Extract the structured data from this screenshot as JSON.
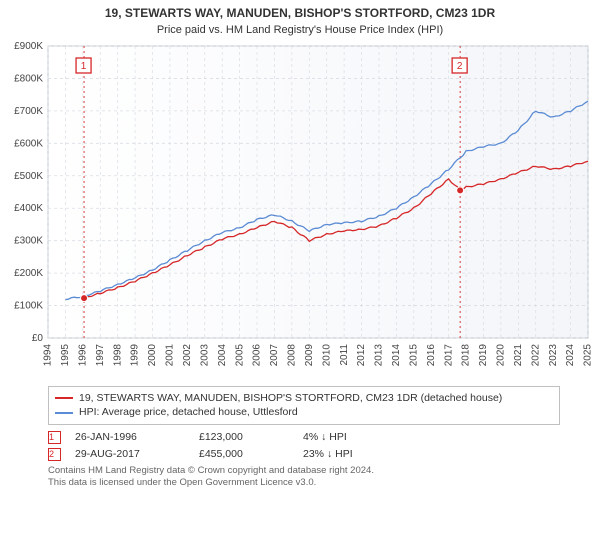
{
  "title_line1": "19, STEWARTS WAY, MANUDEN, BISHOP'S STORTFORD, CM23 1DR",
  "title_line2": "Price paid vs. HM Land Registry's House Price Index (HPI)",
  "chart": {
    "type": "line",
    "background_color": "#ffffff",
    "plot_bg_gradient": [
      "#ffffff",
      "#f3f5f9"
    ],
    "grid_color": "#d9dde3",
    "grid_dash": "3,3",
    "x": {
      "min": 1994,
      "max": 2025,
      "ticks": [
        1994,
        1995,
        1996,
        1997,
        1998,
        1999,
        2000,
        2001,
        2002,
        2003,
        2004,
        2005,
        2006,
        2007,
        2008,
        2009,
        2010,
        2011,
        2012,
        2013,
        2014,
        2015,
        2016,
        2017,
        2018,
        2019,
        2020,
        2021,
        2022,
        2023,
        2024,
        2025
      ],
      "tick_labels": [
        "1994",
        "1995",
        "1996",
        "1997",
        "1998",
        "1999",
        "2000",
        "2001",
        "2002",
        "2003",
        "2004",
        "2005",
        "2006",
        "2007",
        "2008",
        "2009",
        "2010",
        "2011",
        "2012",
        "2013",
        "2014",
        "2015",
        "2016",
        "2017",
        "2018",
        "2019",
        "2020",
        "2021",
        "2022",
        "2023",
        "2024",
        "2025"
      ],
      "label_rotation": -90,
      "label_fontsize": 10
    },
    "y": {
      "min": 0,
      "max": 900,
      "ticks": [
        0,
        100,
        200,
        300,
        400,
        500,
        600,
        700,
        800,
        900
      ],
      "tick_labels": [
        "£0",
        "£100K",
        "£200K",
        "£300K",
        "£400K",
        "£500K",
        "£600K",
        "£700K",
        "£800K",
        "£900K"
      ],
      "label_fontsize": 10
    },
    "series": [
      {
        "name": "property",
        "legend": "19, STEWARTS WAY, MANUDEN, BISHOP'S STORTFORD, CM23 1DR (detached house)",
        "color": "#d62728",
        "line_width": 1.3,
        "x": [
          1996.0,
          1997,
          1998,
          1999,
          2000,
          2001,
          2002,
          2003,
          2004,
          2005,
          2006,
          2007,
          2008,
          2009,
          2010,
          2011,
          2012,
          2013,
          2014,
          2015,
          2016,
          2017,
          2017.66,
          2018,
          2019,
          2020,
          2021,
          2022,
          2023,
          2024,
          2025
        ],
        "y": [
          123,
          138,
          155,
          175,
          200,
          225,
          255,
          280,
          305,
          320,
          340,
          360,
          340,
          300,
          320,
          330,
          335,
          345,
          370,
          400,
          445,
          490,
          455,
          465,
          475,
          490,
          510,
          530,
          520,
          530,
          545
        ]
      },
      {
        "name": "hpi",
        "legend": "HPI: Average price, detached house, Uttlesford",
        "color": "#5b8bd4",
        "line_width": 1.3,
        "x": [
          1995,
          1996,
          1997,
          1998,
          1999,
          2000,
          2001,
          2002,
          2003,
          2004,
          2005,
          2006,
          2007,
          2008,
          2009,
          2010,
          2011,
          2012,
          2013,
          2014,
          2015,
          2016,
          2017,
          2018,
          2019,
          2020,
          2021,
          2022,
          2023,
          2024,
          2025
        ],
        "y": [
          120,
          128,
          145,
          165,
          185,
          210,
          240,
          270,
          300,
          325,
          340,
          365,
          380,
          360,
          330,
          350,
          355,
          360,
          375,
          400,
          435,
          475,
          520,
          575,
          590,
          600,
          640,
          700,
          680,
          700,
          730
        ]
      }
    ],
    "sale_markers": [
      {
        "n": "1",
        "year": 1996.07,
        "price": 123,
        "guide_color": "#d62728"
      },
      {
        "n": "2",
        "year": 2017.66,
        "price": 455,
        "guide_color": "#d62728"
      }
    ],
    "marker_point_color": "#d62728",
    "marker_point_radius": 3.5,
    "marker_box_border": "#d62728",
    "marker_box_text": "#d62728"
  },
  "legend": {
    "border_color": "#c0c0c0",
    "fontsize": 10.5,
    "items": [
      {
        "color": "#d62728",
        "label_path": "chart.series.0.legend"
      },
      {
        "color": "#5b8bd4",
        "label_path": "chart.series.1.legend"
      }
    ]
  },
  "marker_table": {
    "fontsize": 10.5,
    "rows": [
      {
        "n": "1",
        "date": "26-JAN-1996",
        "price": "£123,000",
        "pct": "4%",
        "arrow": "↓",
        "suffix": "HPI"
      },
      {
        "n": "2",
        "date": "29-AUG-2017",
        "price": "£455,000",
        "pct": "23%",
        "arrow": "↓",
        "suffix": "HPI"
      }
    ]
  },
  "footnote_line1": "Contains HM Land Registry data © Crown copyright and database right 2024.",
  "footnote_line2": "This data is licensed under the Open Government Licence v3.0."
}
